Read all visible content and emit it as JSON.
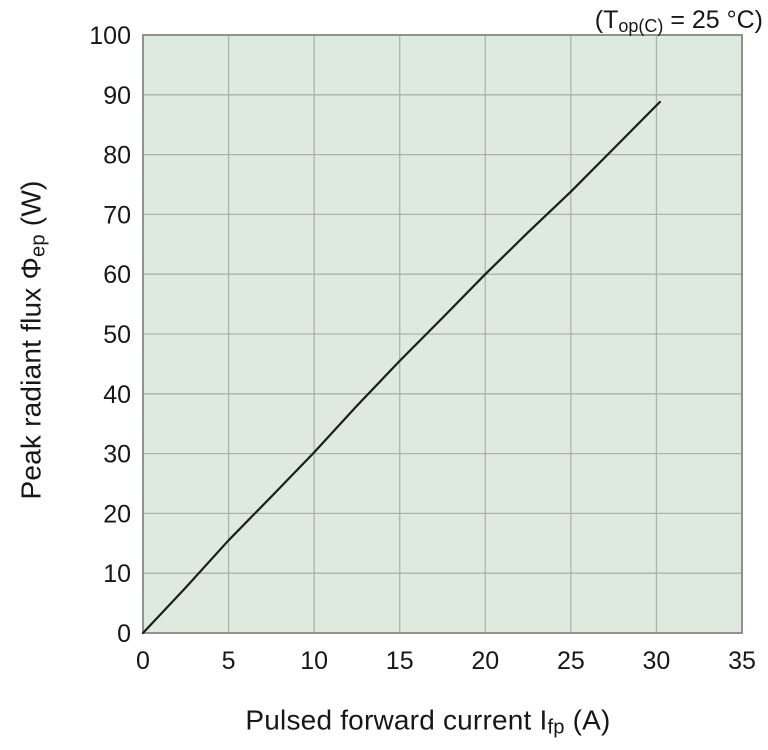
{
  "figure": {
    "annotation": {
      "prefix": "(T",
      "sub": "op(C)",
      "suffix": " = 25 °C)"
    },
    "ylabel": {
      "prefix": "Peak radiant flux Φ",
      "sub": "ep",
      "suffix": " (W)"
    },
    "xlabel": {
      "prefix": "Pulsed forward current I",
      "sub": "fp",
      "suffix": " (A)"
    }
  },
  "chart_data": {
    "type": "line",
    "title": "",
    "condition_annotation": "(Top(C) = 25 °C)",
    "xlabel": "Pulsed forward current Ifp (A)",
    "ylabel": "Peak radiant flux Φep (W)",
    "xlim": [
      0,
      35
    ],
    "ylim": [
      0,
      100
    ],
    "x_ticks": [
      0,
      5,
      10,
      15,
      20,
      25,
      30,
      35
    ],
    "y_ticks": [
      0,
      10,
      20,
      30,
      40,
      50,
      60,
      70,
      80,
      90,
      100
    ],
    "grid": true,
    "legend": "none",
    "series": [
      {
        "name": "peak-radiant-flux-vs-pulsed-forward-current",
        "x": [
          0,
          2.5,
          5,
          7.5,
          10,
          12.5,
          15,
          17.5,
          20,
          22.5,
          25,
          27.5,
          30.2
        ],
        "y": [
          0,
          7.6,
          15.5,
          22.8,
          30.2,
          38,
          45.5,
          52.7,
          60,
          67,
          73.8,
          81,
          88.8
        ]
      }
    ],
    "colors": {
      "plot_background": "#dfeade",
      "grid": "#aab4aa",
      "plot_border": "#8d948d",
      "line": "#1c1c1c",
      "text": "#171717"
    }
  }
}
